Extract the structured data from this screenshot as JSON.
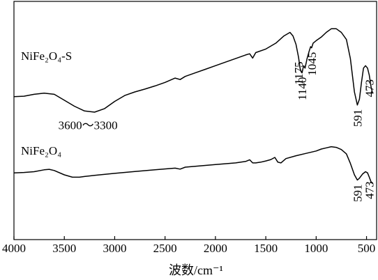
{
  "chart_data": {
    "type": "line",
    "xlabel": "波数/cm⁻¹",
    "ylabel": "",
    "xlim": [
      4000,
      400
    ],
    "x_reversed": true,
    "xticks": [
      4000,
      3500,
      3000,
      2500,
      2000,
      1500,
      1000,
      500
    ],
    "series": [
      {
        "name": "NiFe₂O₄-S",
        "points": [
          [
            4000,
            0.6
          ],
          [
            3900,
            0.602
          ],
          [
            3800,
            0.61
          ],
          [
            3700,
            0.615
          ],
          [
            3600,
            0.61
          ],
          [
            3500,
            0.585
          ],
          [
            3400,
            0.56
          ],
          [
            3300,
            0.54
          ],
          [
            3200,
            0.535
          ],
          [
            3100,
            0.55
          ],
          [
            3000,
            0.58
          ],
          [
            2900,
            0.605
          ],
          [
            2800,
            0.62
          ],
          [
            2700,
            0.632
          ],
          [
            2600,
            0.645
          ],
          [
            2500,
            0.66
          ],
          [
            2400,
            0.678
          ],
          [
            2350,
            0.672
          ],
          [
            2300,
            0.685
          ],
          [
            2200,
            0.7
          ],
          [
            2100,
            0.715
          ],
          [
            2000,
            0.73
          ],
          [
            1900,
            0.745
          ],
          [
            1800,
            0.76
          ],
          [
            1700,
            0.775
          ],
          [
            1660,
            0.78
          ],
          [
            1630,
            0.762
          ],
          [
            1600,
            0.785
          ],
          [
            1500,
            0.8
          ],
          [
            1400,
            0.825
          ],
          [
            1320,
            0.855
          ],
          [
            1260,
            0.87
          ],
          [
            1230,
            0.855
          ],
          [
            1200,
            0.82
          ],
          [
            1175,
            0.765
          ],
          [
            1160,
            0.72
          ],
          [
            1150,
            0.705
          ],
          [
            1140,
            0.7
          ],
          [
            1125,
            0.73
          ],
          [
            1110,
            0.72
          ],
          [
            1090,
            0.76
          ],
          [
            1070,
            0.79
          ],
          [
            1055,
            0.81
          ],
          [
            1045,
            0.805
          ],
          [
            1030,
            0.825
          ],
          [
            1000,
            0.835
          ],
          [
            950,
            0.85
          ],
          [
            900,
            0.87
          ],
          [
            850,
            0.885
          ],
          [
            800,
            0.885
          ],
          [
            750,
            0.87
          ],
          [
            700,
            0.84
          ],
          [
            660,
            0.76
          ],
          [
            620,
            0.62
          ],
          [
            591,
            0.565
          ],
          [
            570,
            0.59
          ],
          [
            550,
            0.66
          ],
          [
            530,
            0.72
          ],
          [
            510,
            0.73
          ],
          [
            490,
            0.72
          ],
          [
            473,
            0.69
          ],
          [
            455,
            0.64
          ],
          [
            440,
            0.615
          ]
        ]
      },
      {
        "name": "NiFe₂O₄",
        "points": [
          [
            4000,
            0.28
          ],
          [
            3900,
            0.282
          ],
          [
            3800,
            0.285
          ],
          [
            3700,
            0.293
          ],
          [
            3650,
            0.295
          ],
          [
            3600,
            0.29
          ],
          [
            3500,
            0.272
          ],
          [
            3420,
            0.262
          ],
          [
            3350,
            0.262
          ],
          [
            3300,
            0.265
          ],
          [
            3200,
            0.27
          ],
          [
            3000,
            0.278
          ],
          [
            2800,
            0.286
          ],
          [
            2600,
            0.293
          ],
          [
            2400,
            0.3
          ],
          [
            2350,
            0.296
          ],
          [
            2300,
            0.304
          ],
          [
            2200,
            0.308
          ],
          [
            2000,
            0.315
          ],
          [
            1800,
            0.322
          ],
          [
            1700,
            0.328
          ],
          [
            1660,
            0.335
          ],
          [
            1630,
            0.322
          ],
          [
            1600,
            0.322
          ],
          [
            1550,
            0.325
          ],
          [
            1500,
            0.33
          ],
          [
            1450,
            0.336
          ],
          [
            1410,
            0.345
          ],
          [
            1380,
            0.325
          ],
          [
            1350,
            0.322
          ],
          [
            1300,
            0.34
          ],
          [
            1200,
            0.352
          ],
          [
            1100,
            0.362
          ],
          [
            1000,
            0.372
          ],
          [
            950,
            0.38
          ],
          [
            900,
            0.385
          ],
          [
            850,
            0.39
          ],
          [
            800,
            0.387
          ],
          [
            750,
            0.378
          ],
          [
            700,
            0.36
          ],
          [
            660,
            0.32
          ],
          [
            620,
            0.272
          ],
          [
            591,
            0.25
          ],
          [
            570,
            0.258
          ],
          [
            540,
            0.275
          ],
          [
            510,
            0.285
          ],
          [
            490,
            0.28
          ],
          [
            473,
            0.262
          ],
          [
            455,
            0.242
          ],
          [
            440,
            0.235
          ]
        ]
      }
    ],
    "series_labels": [
      "NiFe₂O₄-S",
      "NiFe₂O₄"
    ],
    "annotations": [
      {
        "text": "3600～3300",
        "x": 3300,
        "series": 0,
        "orientation": "horizontal"
      },
      {
        "text": "1175",
        "x": 1175,
        "series": 0,
        "orientation": "vertical"
      },
      {
        "text": "1140",
        "x": 1140,
        "series": 0,
        "orientation": "vertical"
      },
      {
        "text": "1045",
        "x": 1045,
        "series": 0,
        "orientation": "vertical"
      },
      {
        "text": "591",
        "x": 591,
        "series": 0,
        "orientation": "vertical"
      },
      {
        "text": "473",
        "x": 473,
        "series": 0,
        "orientation": "vertical"
      },
      {
        "text": "591",
        "x": 591,
        "series": 1,
        "orientation": "vertical"
      },
      {
        "text": "473",
        "x": 473,
        "series": 1,
        "orientation": "vertical"
      }
    ],
    "grid": false,
    "legend": "none"
  }
}
